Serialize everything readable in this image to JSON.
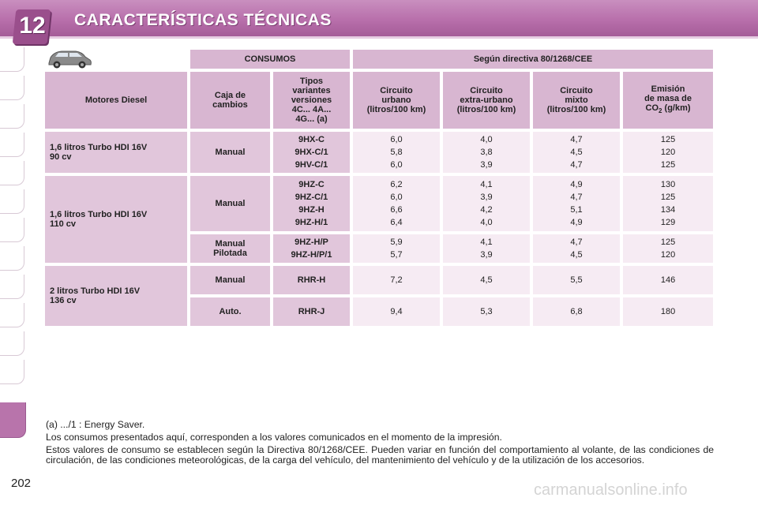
{
  "header": {
    "chapter_number": "12",
    "title": "CARACTERÍSTICAS TÉCNICAS"
  },
  "page_number": "202",
  "table": {
    "consumos_label": "CONSUMOS",
    "directive_label": "Según directiva 80/1268/CEE",
    "columns": {
      "motor": "Motores Diesel",
      "caja": "Caja de cambios",
      "tipos": [
        "Tipos",
        "variantes",
        "versiones",
        "4C... 4A...",
        "4G... (a)"
      ],
      "urbano": [
        "Circuito",
        "urbano",
        "(litros/100 km)"
      ],
      "extra": [
        "Circuito",
        "extra-urbano",
        "(litros/100 km)"
      ],
      "mixto": [
        "Circuito",
        "mixto",
        "(litros/100 km)"
      ],
      "emision": [
        "Emisión",
        "de masa de",
        "CO",
        "2",
        " (g/km)"
      ]
    },
    "rows": {
      "r1": {
        "motor": [
          "1,6 litros Turbo HDI 16V",
          "90 cv"
        ],
        "caja": "Manual",
        "tipos": [
          "9HX-C",
          "9HX-C/1",
          "9HV-C/1"
        ],
        "urbano": [
          "6,0",
          "5,8",
          "6,0"
        ],
        "extra": [
          "4,0",
          "3,8",
          "3,9"
        ],
        "mixto": [
          "4,7",
          "4,5",
          "4,7"
        ],
        "emision": [
          "125",
          "120",
          "125"
        ]
      },
      "r2": {
        "motor": [
          "1,6 litros Turbo HDI 16V",
          "110 cv"
        ],
        "caja": "Manual",
        "tipos": [
          "9HZ-C",
          "9HZ-C/1",
          "9HZ-H",
          "9HZ-H/1"
        ],
        "urbano": [
          "6,2",
          "6,0",
          "6,6",
          "6,4"
        ],
        "extra": [
          "4,1",
          "3,9",
          "4,2",
          "4,0"
        ],
        "mixto": [
          "4,9",
          "4,7",
          "5,1",
          "4,9"
        ],
        "emision": [
          "130",
          "125",
          "134",
          "129"
        ]
      },
      "r3": {
        "caja": [
          "Manual",
          "Pilotada"
        ],
        "tipos": [
          "9HZ-H/P",
          "9HZ-H/P/1"
        ],
        "urbano": [
          "5,9",
          "5,7"
        ],
        "extra": [
          "4,1",
          "3,9"
        ],
        "mixto": [
          "4,7",
          "4,5"
        ],
        "emision": [
          "125",
          "120"
        ]
      },
      "r4": {
        "motor": [
          "2 litros Turbo HDI 16V",
          "136 cv"
        ],
        "caja": "Manual",
        "tipos": "RHR-H",
        "urbano": "7,2",
        "extra": "4,5",
        "mixto": "5,5",
        "emision": "146"
      },
      "r5": {
        "caja": "Auto.",
        "tipos": "RHR-J",
        "urbano": "9,4",
        "extra": "5,3",
        "mixto": "6,8",
        "emision": "180"
      }
    }
  },
  "notes": {
    "n1": "(a) .../1 : Energy Saver.",
    "n2": "Los consumos presentados aquí, corresponden a los valores comunicados en el momento de la impresión.",
    "n3": "Estos valores de consumo se establecen según la Directiva 80/1268/CEE. Pueden variar en función del comportamiento al volante, de las condiciones de circulación, de las condiciones meteorológicas, de la carga del vehículo, del mantenimiento del vehículo y de la utilización de los accesorios."
  },
  "watermark": "carmanualsonline.info",
  "colors": {
    "header": "#b86fab",
    "cell_header": "#d8b6d1",
    "cell_label": "#e1c6db",
    "cell_value": "#f6ebf3"
  }
}
